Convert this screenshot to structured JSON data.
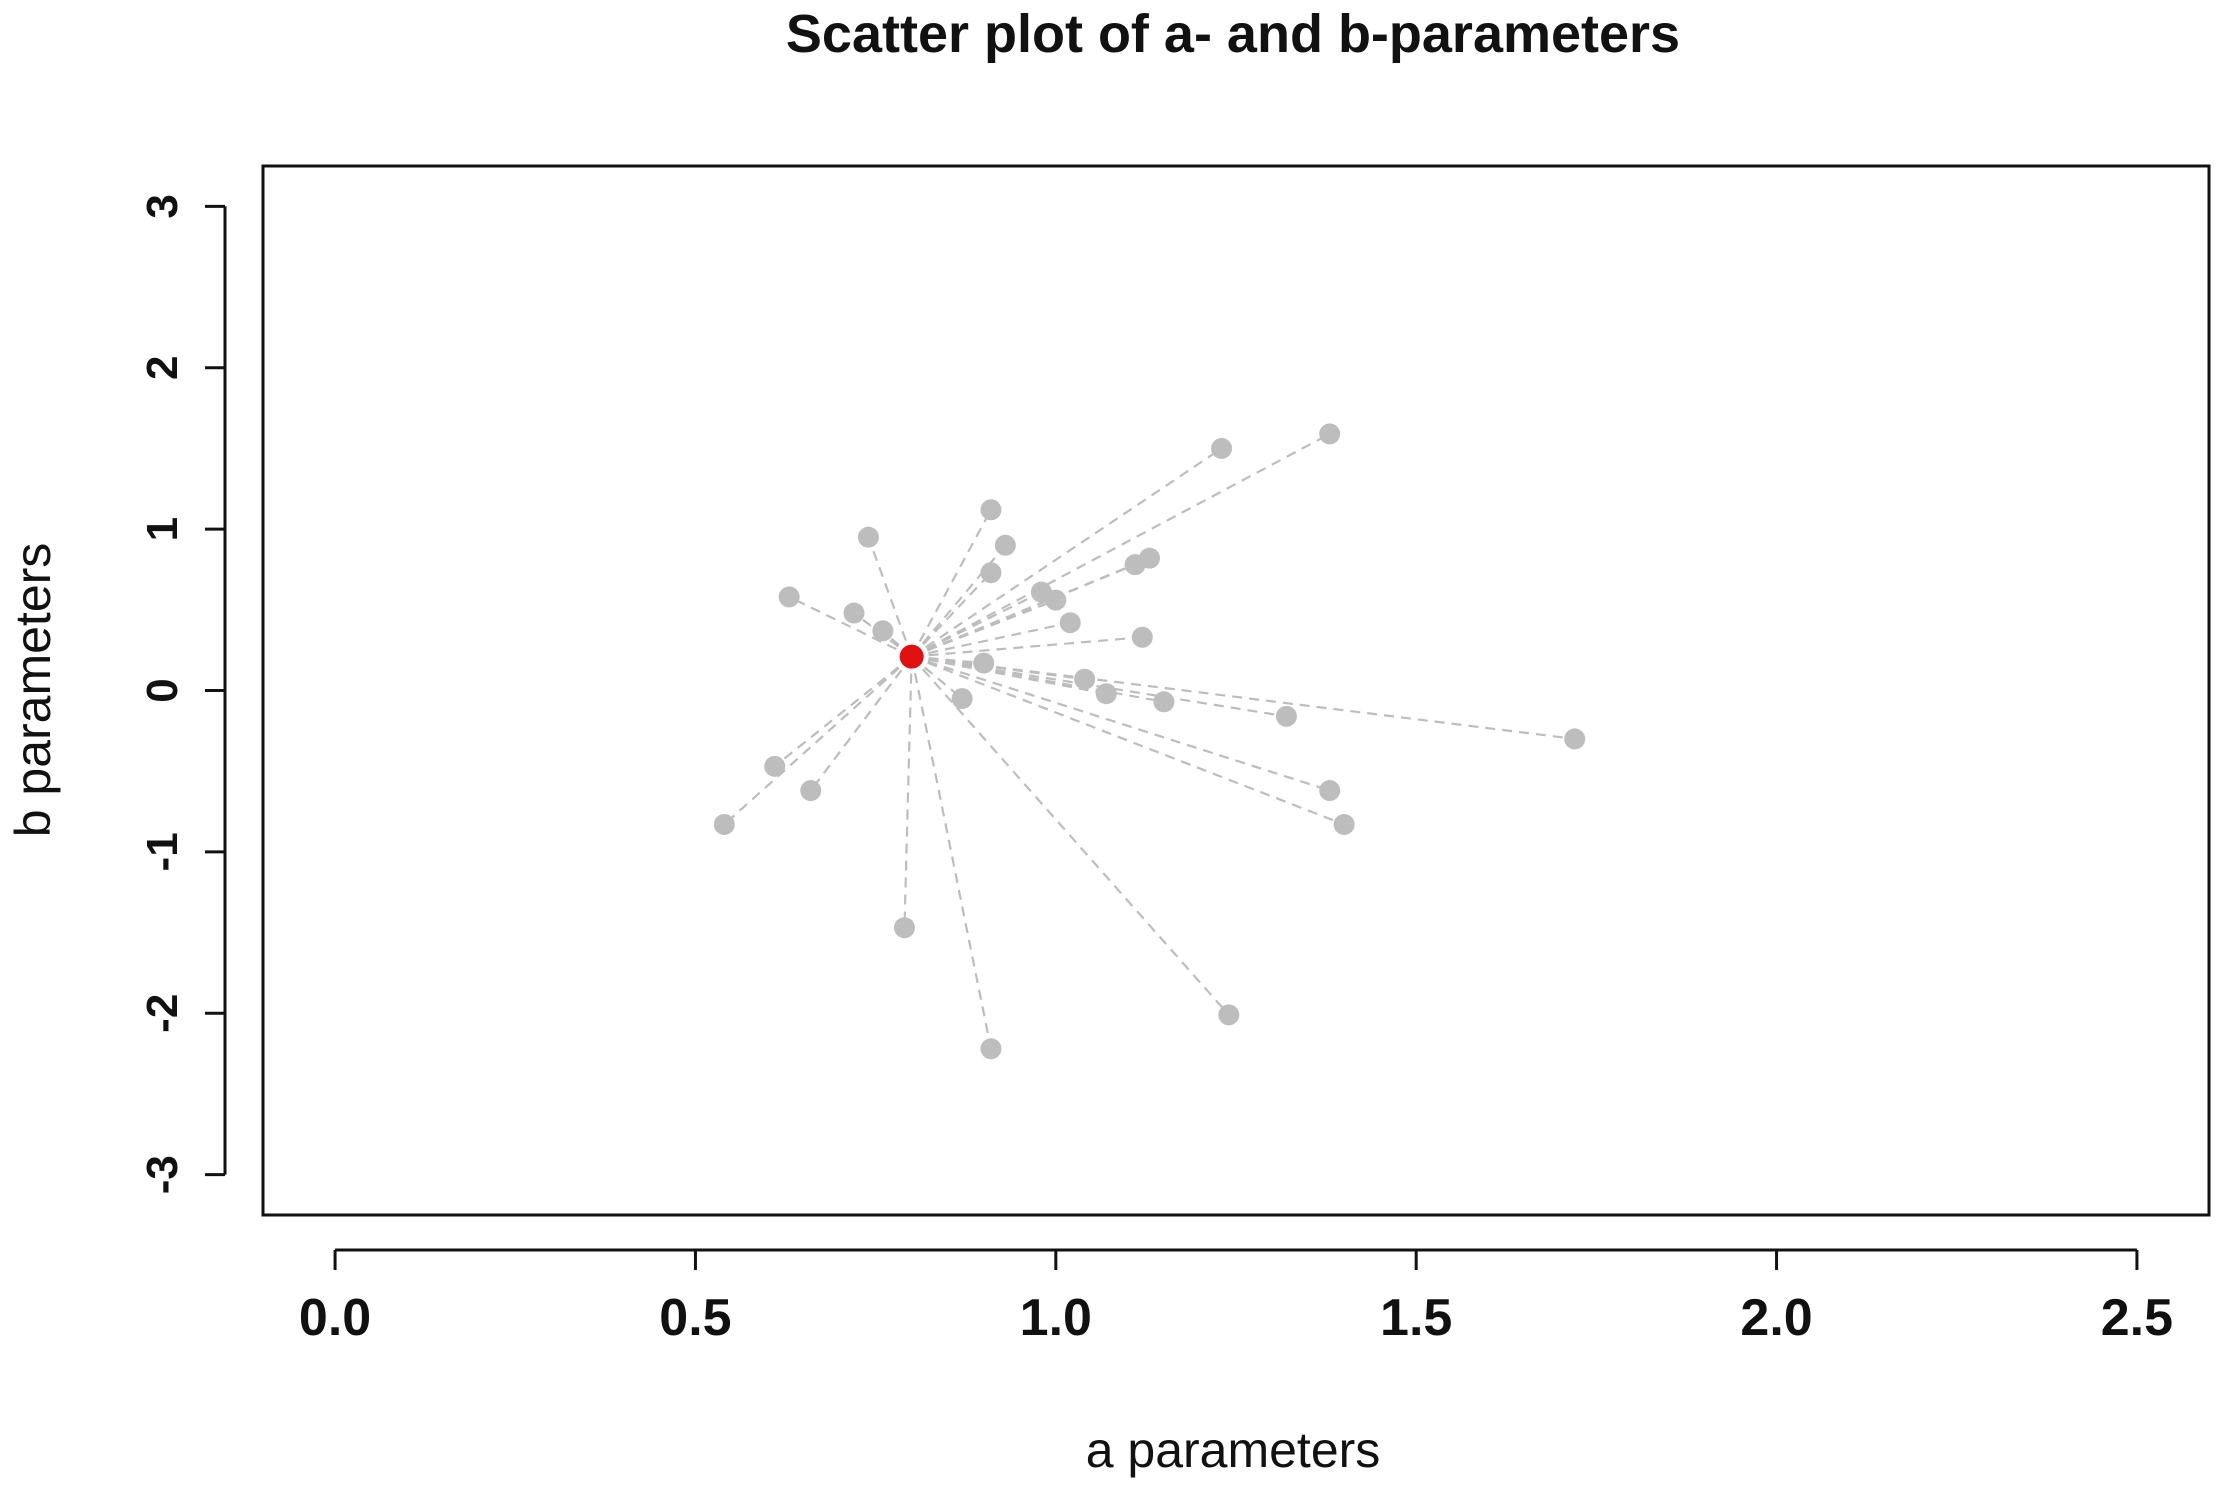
{
  "chart_data": {
    "type": "scatter",
    "title": "Scatter plot of a- and b-parameters",
    "xlabel": "a parameters",
    "ylabel": "b parameters",
    "xlim": [
      -0.1,
      2.6
    ],
    "ylim": [
      -3.25,
      3.25
    ],
    "x_ticks": [
      "0.0",
      "0.5",
      "1.0",
      "1.5",
      "2.0",
      "2.5"
    ],
    "x_tick_values": [
      0.0,
      0.5,
      1.0,
      1.5,
      2.0,
      2.5
    ],
    "y_ticks": [
      "-3",
      "-2",
      "-1",
      "0",
      "1",
      "2",
      "3"
    ],
    "y_tick_values": [
      -3,
      -2,
      -1,
      0,
      1,
      2,
      3
    ],
    "grid": false,
    "center_point": {
      "x": 0.8,
      "y": 0.21,
      "color": "#e01010"
    },
    "point_color": "#bdbdbd",
    "line_color": "#bdbdbd",
    "line_style": "dashed",
    "points": [
      {
        "x": 1.38,
        "y": 1.59
      },
      {
        "x": 1.23,
        "y": 1.5
      },
      {
        "x": 0.91,
        "y": 1.12
      },
      {
        "x": 0.74,
        "y": 0.95
      },
      {
        "x": 0.93,
        "y": 0.9
      },
      {
        "x": 1.13,
        "y": 0.82
      },
      {
        "x": 1.11,
        "y": 0.78
      },
      {
        "x": 0.91,
        "y": 0.73
      },
      {
        "x": 0.98,
        "y": 0.61
      },
      {
        "x": 0.63,
        "y": 0.58
      },
      {
        "x": 1.0,
        "y": 0.56
      },
      {
        "x": 0.72,
        "y": 0.48
      },
      {
        "x": 1.02,
        "y": 0.42
      },
      {
        "x": 0.76,
        "y": 0.37
      },
      {
        "x": 1.12,
        "y": 0.33
      },
      {
        "x": 0.9,
        "y": 0.17
      },
      {
        "x": 1.04,
        "y": 0.07
      },
      {
        "x": 1.07,
        "y": -0.02
      },
      {
        "x": 0.87,
        "y": -0.05
      },
      {
        "x": 1.15,
        "y": -0.07
      },
      {
        "x": 1.32,
        "y": -0.16
      },
      {
        "x": 1.72,
        "y": -0.3
      },
      {
        "x": 0.61,
        "y": -0.47
      },
      {
        "x": 0.66,
        "y": -0.62
      },
      {
        "x": 1.38,
        "y": -0.62
      },
      {
        "x": 0.54,
        "y": -0.83
      },
      {
        "x": 1.4,
        "y": -0.83
      },
      {
        "x": 0.79,
        "y": -1.47
      },
      {
        "x": 1.24,
        "y": -2.01
      },
      {
        "x": 0.91,
        "y": -2.22
      }
    ]
  }
}
